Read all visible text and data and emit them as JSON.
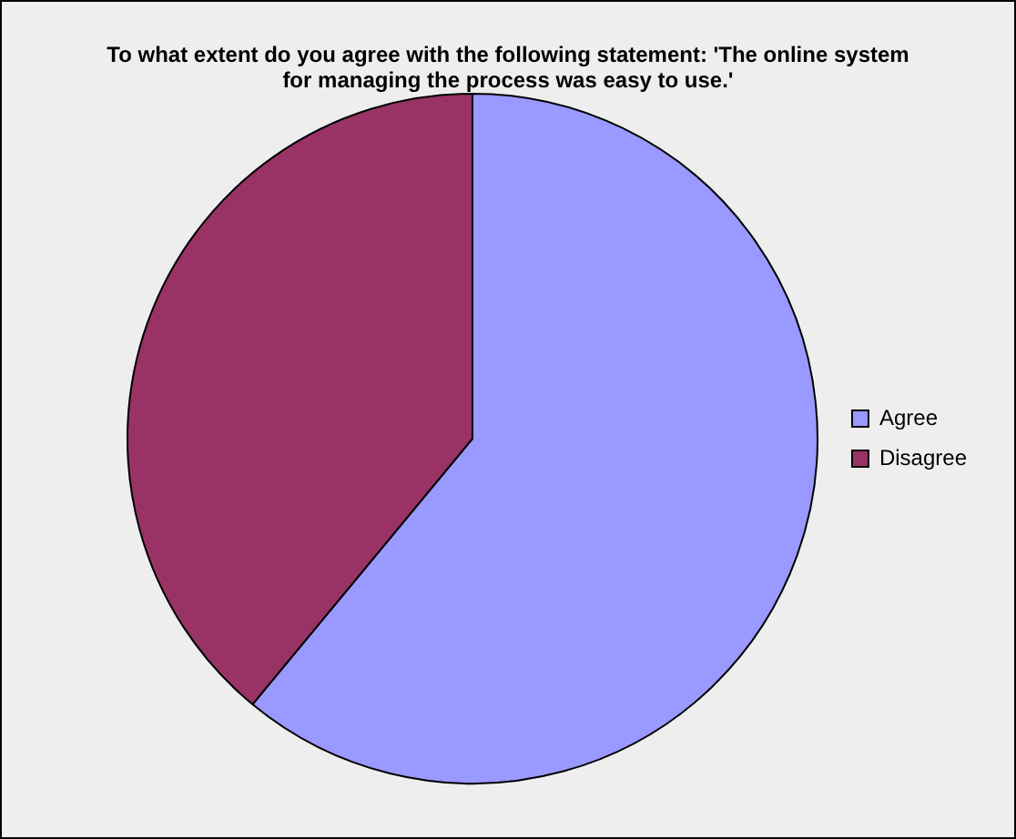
{
  "chart_data": {
    "type": "pie",
    "title": "To what extent do you agree with the following statement: 'The online system for managing the process was easy to use.'",
    "categories": [
      "Agree",
      "Disagree"
    ],
    "values": [
      61,
      39
    ],
    "colors": [
      "#9999ff",
      "#993366"
    ],
    "legend": "right"
  }
}
